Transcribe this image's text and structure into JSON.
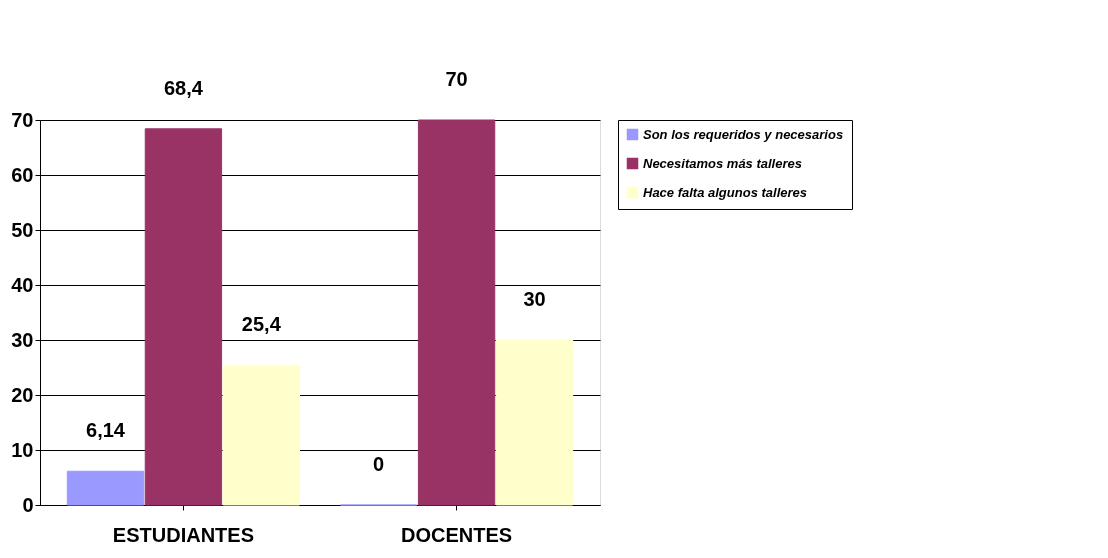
{
  "chart_data": {
    "type": "bar",
    "categories": [
      "ESTUDIANTES",
      "DOCENTES"
    ],
    "series": [
      {
        "name": "Son los requeridos y necesarios",
        "color": "#9999ff",
        "values": [
          6.14,
          0
        ],
        "value_labels": [
          "6,14",
          "0"
        ]
      },
      {
        "name": "Necesitamos más talleres",
        "color": "#993366",
        "values": [
          68.4,
          70
        ],
        "value_labels": [
          "68,4",
          "70"
        ]
      },
      {
        "name": "Hace falta algunos talleres",
        "color": "#ffffcc",
        "values": [
          25.4,
          30
        ],
        "value_labels": [
          "25,4",
          "30"
        ]
      }
    ],
    "ylim": [
      0,
      70
    ],
    "yticks": [
      0,
      10,
      20,
      30,
      40,
      50,
      60,
      70
    ],
    "grid": "y",
    "legend": "right"
  }
}
